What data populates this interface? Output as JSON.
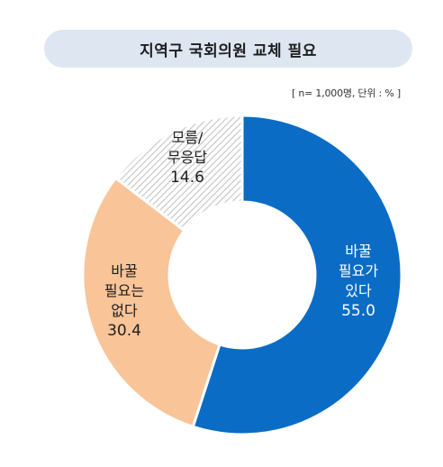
{
  "header": {
    "title": "지역구 국회의원 교체 필요",
    "meta": "[ n= 1,000명, 단위 : % ]"
  },
  "colors": {
    "title_bg": "#dde6f1",
    "need_replace": "#0a6cc4",
    "no_need": "#f8c498",
    "unknown_hatch": "#c8c8c8"
  },
  "chart_data": {
    "type": "pie",
    "donut": true,
    "unit": "%",
    "slices": [
      {
        "label_lines": [
          "바꿀",
          "필요가",
          "있다"
        ],
        "value": 55.0,
        "value_text": "55.0",
        "color": "#0a6cc4",
        "pattern": "solid",
        "text_color": "#ffffff"
      },
      {
        "label_lines": [
          "바꿀",
          "필요는",
          "없다"
        ],
        "value": 30.4,
        "value_text": "30.4",
        "color": "#f8c498",
        "pattern": "solid",
        "text_color": "#1e1e1e"
      },
      {
        "label_lines": [
          "모름/",
          "무응답"
        ],
        "value": 14.6,
        "value_text": "14.6",
        "color": "#c8c8c8",
        "pattern": "hatch",
        "text_color": "#1e1e1e"
      }
    ]
  }
}
